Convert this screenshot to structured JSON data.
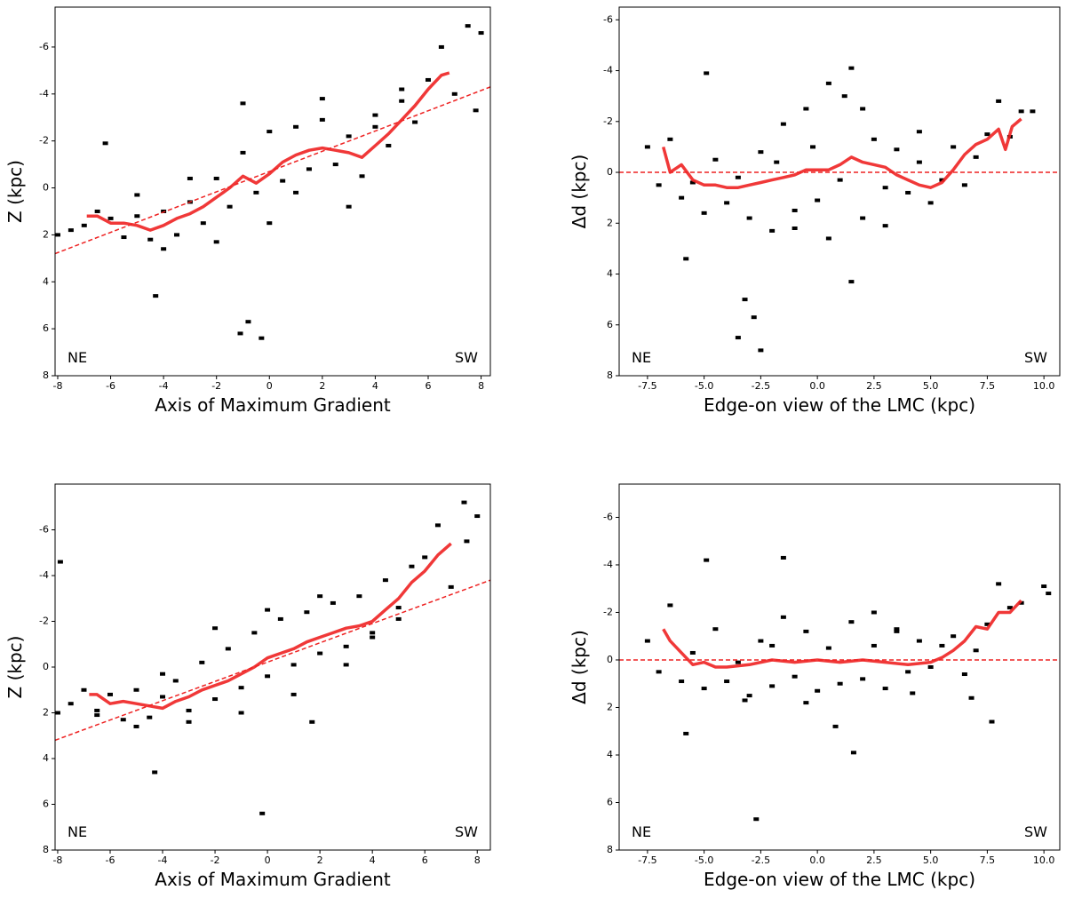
{
  "chart_data": [
    {
      "type": "scatter",
      "xlabel": "Axis of Maximum Gradient",
      "ylabel": "Z (kpc)",
      "annotations": [
        "NE",
        "SW"
      ],
      "xlim": [
        -8.1,
        8.35
      ],
      "ylim": [
        -7.7,
        8
      ],
      "y_inverted": true,
      "xticks": [
        -8,
        -6,
        -4,
        -2,
        0,
        2,
        4,
        6,
        8
      ],
      "yticks": [
        -6,
        -4,
        -2,
        0,
        2,
        4,
        6,
        8
      ],
      "points": {
        "color": "#000000",
        "x": [
          -8,
          -7.5,
          -7,
          -6.5,
          -6,
          -5.5,
          -5,
          -4.5,
          -4,
          -3.5,
          -3,
          -2.5,
          -2,
          -1.5,
          -1,
          -0.5,
          0,
          0.5,
          1,
          1.5,
          2,
          2.5,
          3,
          3.5,
          4,
          4.5,
          5,
          5.5,
          6,
          6.5,
          7,
          7.5,
          8,
          -6.2,
          -5,
          -4,
          -3,
          -2,
          -1,
          0,
          1,
          2,
          3,
          4,
          5,
          -1.1,
          -0.8,
          -0.3,
          7.8,
          -4.3
        ],
        "y": [
          2,
          1.8,
          1.6,
          1.0,
          1.3,
          2.1,
          1.2,
          2.2,
          1.0,
          2.0,
          0.6,
          1.5,
          -0.4,
          0.8,
          -1.5,
          0.2,
          -2.4,
          -0.3,
          -2.6,
          -0.8,
          -2.9,
          -1.0,
          -2.2,
          -0.5,
          -3.1,
          -1.8,
          -3.7,
          -2.8,
          -4.6,
          -6.0,
          -4.0,
          -6.9,
          -6.6,
          -1.9,
          0.3,
          2.6,
          -0.4,
          2.3,
          -3.6,
          1.5,
          0.2,
          -3.8,
          0.8,
          -2.6,
          -4.2,
          6.2,
          5.7,
          6.4,
          -3.3,
          4.6
        ]
      },
      "median": {
        "color": "#ee2222",
        "x": [
          -6.9,
          -6.5,
          -6,
          -5.5,
          -5,
          -4.5,
          -4,
          -3.5,
          -3,
          -2.5,
          -2,
          -1.5,
          -1,
          -0.5,
          0,
          0.5,
          1,
          1.5,
          2,
          2.5,
          3,
          3.5,
          4,
          4.5,
          5,
          5.5,
          6,
          6.5,
          6.8
        ],
        "y": [
          1.2,
          1.2,
          1.5,
          1.5,
          1.6,
          1.8,
          1.6,
          1.3,
          1.1,
          0.8,
          0.4,
          0,
          -0.5,
          -0.2,
          -0.6,
          -1.1,
          -1.4,
          -1.6,
          -1.7,
          -1.6,
          -1.5,
          -1.3,
          -1.8,
          -2.3,
          -2.9,
          -3.5,
          -4.2,
          -4.8,
          -4.9
        ]
      },
      "fit": {
        "color": "#ee2222",
        "x": [
          -8.1,
          8.35
        ],
        "y": [
          2.8,
          -4.3
        ]
      }
    },
    {
      "type": "scatter",
      "xlabel": "Edge-on view of the LMC (kpc)",
      "ylabel": "Δd (kpc)",
      "annotations": [
        "NE",
        "SW"
      ],
      "xlim": [
        -8.75,
        10.7
      ],
      "ylim": [
        -6.5,
        8
      ],
      "y_inverted": true,
      "xticks": [
        -7.5,
        {
          "value": -5,
          "label": "-5.0"
        },
        -2.5,
        {
          "value": 0,
          "label": "0.0"
        },
        2.5,
        {
          "value": 5,
          "label": "5.0"
        },
        7.5,
        {
          "value": 10,
          "label": "10.0"
        }
      ],
      "yticks": [
        -6,
        -4,
        -2,
        0,
        2,
        4,
        6,
        8
      ],
      "points": {
        "color": "#000000",
        "x": [
          -7.5,
          -7,
          -6.5,
          -6,
          -5.5,
          -5,
          -4.5,
          -4,
          -3.5,
          -3,
          -2.5,
          -2,
          -1.5,
          -1,
          -0.5,
          0,
          0.5,
          1,
          1.5,
          2,
          2.5,
          3,
          3.5,
          4,
          4.5,
          5,
          5.5,
          6,
          6.5,
          7,
          7.5,
          8,
          8.5,
          9,
          -5.8,
          -3.2,
          -2.8,
          -2.5,
          -3.5,
          -1,
          0.5,
          1.5,
          2,
          -0.2,
          1.2,
          3,
          4.5,
          9.5,
          -4.9,
          -1.8
        ],
        "y": [
          -1,
          0.5,
          -1.3,
          1,
          0.4,
          1.6,
          -0.5,
          1.2,
          0.2,
          1.8,
          -0.8,
          2.3,
          -1.9,
          1.5,
          -2.5,
          1.1,
          -3.5,
          0.3,
          -4.1,
          1.8,
          -1.3,
          2.1,
          -0.9,
          0.8,
          -1.6,
          1.2,
          0.3,
          -1.0,
          0.5,
          -0.6,
          -1.5,
          -2.8,
          -1.4,
          -2.4,
          3.4,
          5.0,
          5.7,
          7.0,
          6.5,
          2.2,
          2.6,
          4.3,
          -2.5,
          -1.0,
          -3.0,
          0.6,
          -0.4,
          -2.4,
          -3.9,
          -0.4
        ]
      },
      "median": {
        "color": "#ee2222",
        "x": [
          -6.8,
          -6.5,
          -6,
          -5.5,
          -5,
          -4.5,
          -4,
          -3.5,
          -3,
          -2.5,
          -2,
          -1.5,
          -1,
          -0.5,
          0,
          0.5,
          1,
          1.5,
          2,
          2.5,
          3,
          3.5,
          4,
          4.5,
          5,
          5.5,
          6,
          6.5,
          7,
          7.5,
          8,
          8.3,
          8.6,
          9
        ],
        "y": [
          -1,
          0,
          -0.3,
          0.3,
          0.5,
          0.5,
          0.6,
          0.6,
          0.5,
          0.4,
          0.3,
          0.2,
          0.1,
          -0.1,
          -0.1,
          -0.1,
          -0.3,
          -0.6,
          -0.4,
          -0.3,
          -0.2,
          0.1,
          0.3,
          0.5,
          0.6,
          0.4,
          -0.1,
          -0.7,
          -1.1,
          -1.3,
          -1.7,
          -0.9,
          -1.8,
          -2.1
        ]
      },
      "fit": {
        "color": "#ee2222",
        "x": [
          -8.75,
          10.7
        ],
        "y": [
          0,
          0
        ]
      }
    },
    {
      "type": "scatter",
      "xlabel": "Axis of Maximum Gradient",
      "ylabel": "Z (kpc)",
      "annotations": [
        "NE",
        "SW"
      ],
      "xlim": [
        -8.1,
        8.5
      ],
      "ylim": [
        -8,
        8
      ],
      "y_inverted": true,
      "xticks": [
        -8,
        -6,
        -4,
        -2,
        0,
        2,
        4,
        6,
        8
      ],
      "yticks": [
        -6,
        -4,
        -2,
        0,
        2,
        4,
        6,
        8
      ],
      "points": {
        "color": "#000000",
        "x": [
          -8,
          -7.5,
          -7,
          -6.5,
          -6,
          -5.5,
          -5,
          -4.5,
          -4,
          -3.5,
          -3,
          -2.5,
          -2,
          -1.5,
          -1,
          -0.5,
          0,
          0.5,
          1,
          1.5,
          2,
          2.5,
          3,
          3.5,
          4,
          4.5,
          5,
          5.5,
          6,
          6.5,
          7,
          7.5,
          8,
          -6.5,
          -5,
          -4,
          -3,
          -2,
          -1,
          0,
          1,
          2,
          3,
          4,
          5,
          -4.3,
          -0.2,
          1.7,
          -7.9,
          7.6
        ],
        "y": [
          2,
          1.6,
          1.0,
          2.1,
          1.2,
          2.3,
          1.0,
          2.2,
          1.3,
          0.6,
          1.9,
          -0.2,
          1.4,
          -0.8,
          0.9,
          -1.5,
          0.4,
          -2.1,
          -0.1,
          -2.4,
          -0.6,
          -2.8,
          -0.9,
          -3.1,
          -1.3,
          -3.8,
          -2.6,
          -4.4,
          -4.8,
          -6.2,
          -3.5,
          -7.2,
          -6.6,
          1.9,
          2.6,
          0.3,
          2.4,
          -1.7,
          2.0,
          -2.5,
          1.2,
          -3.1,
          -0.1,
          -1.5,
          -2.1,
          4.6,
          6.4,
          2.4,
          -4.6,
          -5.5
        ]
      },
      "median": {
        "color": "#ee2222",
        "x": [
          -6.8,
          -6.5,
          -6,
          -5.5,
          -5,
          -4.5,
          -4,
          -3.5,
          -3,
          -2.5,
          -2,
          -1.5,
          -1,
          -0.5,
          0,
          0.5,
          1,
          1.5,
          2,
          2.5,
          3,
          3.5,
          4,
          4.5,
          5,
          5.5,
          6,
          6.5,
          7
        ],
        "y": [
          1.2,
          1.2,
          1.6,
          1.5,
          1.6,
          1.7,
          1.8,
          1.5,
          1.3,
          1,
          0.8,
          0.6,
          0.3,
          0,
          -0.4,
          -0.6,
          -0.8,
          -1.1,
          -1.3,
          -1.5,
          -1.7,
          -1.8,
          -2,
          -2.5,
          -3,
          -3.7,
          -4.2,
          -4.9,
          -5.4
        ]
      },
      "fit": {
        "color": "#ee2222",
        "x": [
          -8.1,
          8.5
        ],
        "y": [
          3.2,
          -3.8
        ]
      }
    },
    {
      "type": "scatter",
      "xlabel": "Edge-on view of the LMC (kpc)",
      "ylabel": "Δd (kpc)",
      "annotations": [
        "NE",
        "SW"
      ],
      "xlim": [
        -8.75,
        10.7
      ],
      "ylim": [
        -7.4,
        8
      ],
      "y_inverted": true,
      "xticks": [
        -7.5,
        {
          "value": -5,
          "label": "-5.0"
        },
        -2.5,
        {
          "value": 0,
          "label": "0.0"
        },
        2.5,
        {
          "value": 5,
          "label": "5.0"
        },
        7.5,
        {
          "value": 10,
          "label": "10.0"
        }
      ],
      "yticks": [
        -6,
        -4,
        -2,
        0,
        2,
        4,
        6,
        8
      ],
      "points": {
        "color": "#000000",
        "x": [
          -7.5,
          -7,
          -6.5,
          -6,
          -5.5,
          -5,
          -4.5,
          -4,
          -3.5,
          -3,
          -2.5,
          -2,
          -1.5,
          -1,
          -0.5,
          0,
          0.5,
          1,
          1.5,
          2,
          2.5,
          3,
          3.5,
          4,
          4.5,
          5,
          5.5,
          6,
          6.5,
          7,
          7.5,
          8,
          8.5,
          9,
          10,
          -5.8,
          -4.9,
          -2.7,
          -1.5,
          1.6,
          -3.2,
          0.8,
          2.5,
          4.2,
          -0.5,
          3.5,
          6.8,
          7.7,
          10.2,
          -2
        ],
        "y": [
          -0.8,
          0.5,
          -2.3,
          0.9,
          -0.3,
          1.2,
          -1.3,
          0.9,
          0.1,
          1.5,
          -0.8,
          1.1,
          -1.8,
          0.7,
          -1.2,
          1.3,
          -0.5,
          1.0,
          -1.6,
          0.8,
          -0.6,
          1.2,
          -1.3,
          0.5,
          -0.8,
          0.3,
          -0.6,
          -1.0,
          0.6,
          -0.4,
          -1.5,
          -3.2,
          -2.2,
          -2.4,
          -3.1,
          3.1,
          -4.2,
          6.7,
          -4.3,
          3.9,
          1.7,
          2.8,
          -2.0,
          1.4,
          1.8,
          -1.2,
          1.6,
          2.6,
          -2.8,
          -0.6
        ]
      },
      "median": {
        "color": "#ee2222",
        "x": [
          -6.8,
          -6.5,
          -6,
          -5.5,
          -5,
          -4.5,
          -4,
          -3,
          -2,
          -1,
          0,
          1,
          2,
          3,
          4,
          5,
          5.5,
          6,
          6.5,
          7,
          7.5,
          8,
          8.5,
          9
        ],
        "y": [
          -1.3,
          -0.8,
          -0.3,
          0.2,
          0.1,
          0.3,
          0.3,
          0.2,
          0,
          0.1,
          0,
          0.1,
          0,
          0.1,
          0.2,
          0.1,
          -0.1,
          -0.4,
          -0.8,
          -1.4,
          -1.3,
          -2,
          -2,
          -2.5
        ]
      },
      "fit": {
        "color": "#ee2222",
        "x": [
          -8.75,
          10.7
        ],
        "y": [
          0,
          0
        ]
      }
    }
  ]
}
